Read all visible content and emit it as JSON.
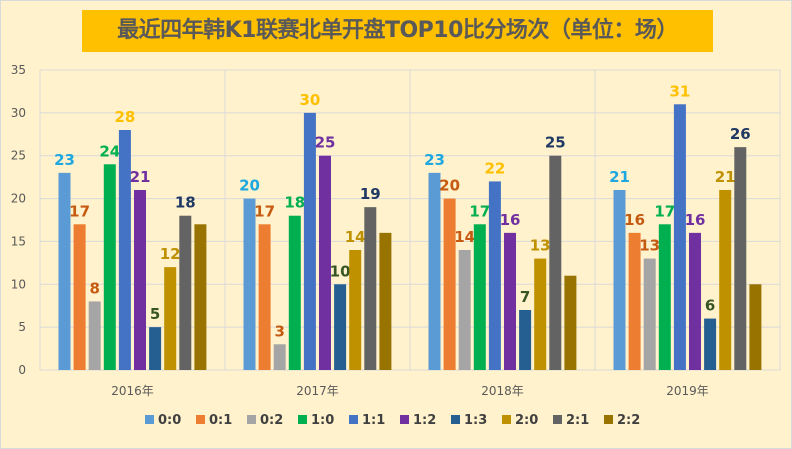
{
  "chart_data": {
    "type": "bar",
    "title": "最近四年韩K1联赛北单开盘TOP10比分场次（单位：场）",
    "categories": [
      "2016年",
      "2017年",
      "2018年",
      "2019年"
    ],
    "ylim": [
      0,
      35
    ],
    "yticks": [
      0,
      5,
      10,
      15,
      20,
      25,
      30,
      35
    ],
    "grid": true,
    "legend_position": "bottom",
    "series": [
      {
        "name": "0:0",
        "values": [
          23,
          20,
          23,
          21
        ],
        "color": "#5B9BD5",
        "label_color": "#1FA8E0",
        "labeled": true
      },
      {
        "name": "0:1",
        "values": [
          17,
          17,
          20,
          16
        ],
        "color": "#ED7D31",
        "label_color": "#C55A11",
        "labeled": true
      },
      {
        "name": "0:2",
        "values": [
          8,
          3,
          14,
          13
        ],
        "color": "#A5A5A5",
        "label_color": "#C55A11",
        "labeled": true
      },
      {
        "name": "1:0",
        "values": [
          24,
          18,
          17,
          17
        ],
        "color": "#00B050",
        "label_color": "#00B050",
        "labeled": true
      },
      {
        "name": "1:1",
        "values": [
          28,
          30,
          22,
          31
        ],
        "color": "#4472C4",
        "label_color": "#FFC000",
        "labeled": true
      },
      {
        "name": "1:2",
        "values": [
          21,
          25,
          16,
          16
        ],
        "color": "#7030A0",
        "label_color": "#7030A0",
        "labeled": true
      },
      {
        "name": "1:3",
        "values": [
          5,
          10,
          7,
          6
        ],
        "color": "#255E91",
        "label_color": "#375623",
        "labeled": true
      },
      {
        "name": "2:0",
        "values": [
          12,
          14,
          13,
          21
        ],
        "color": "#BF9000",
        "label_color": "#BF9000",
        "labeled": true
      },
      {
        "name": "2:1",
        "values": [
          18,
          19,
          25,
          26
        ],
        "color": "#636363",
        "label_color": "#1F3864",
        "labeled": true
      },
      {
        "name": "2:2",
        "values": [
          17,
          16,
          11,
          10
        ],
        "color": "#997300",
        "label_color": "#997300",
        "labeled": false
      }
    ]
  }
}
